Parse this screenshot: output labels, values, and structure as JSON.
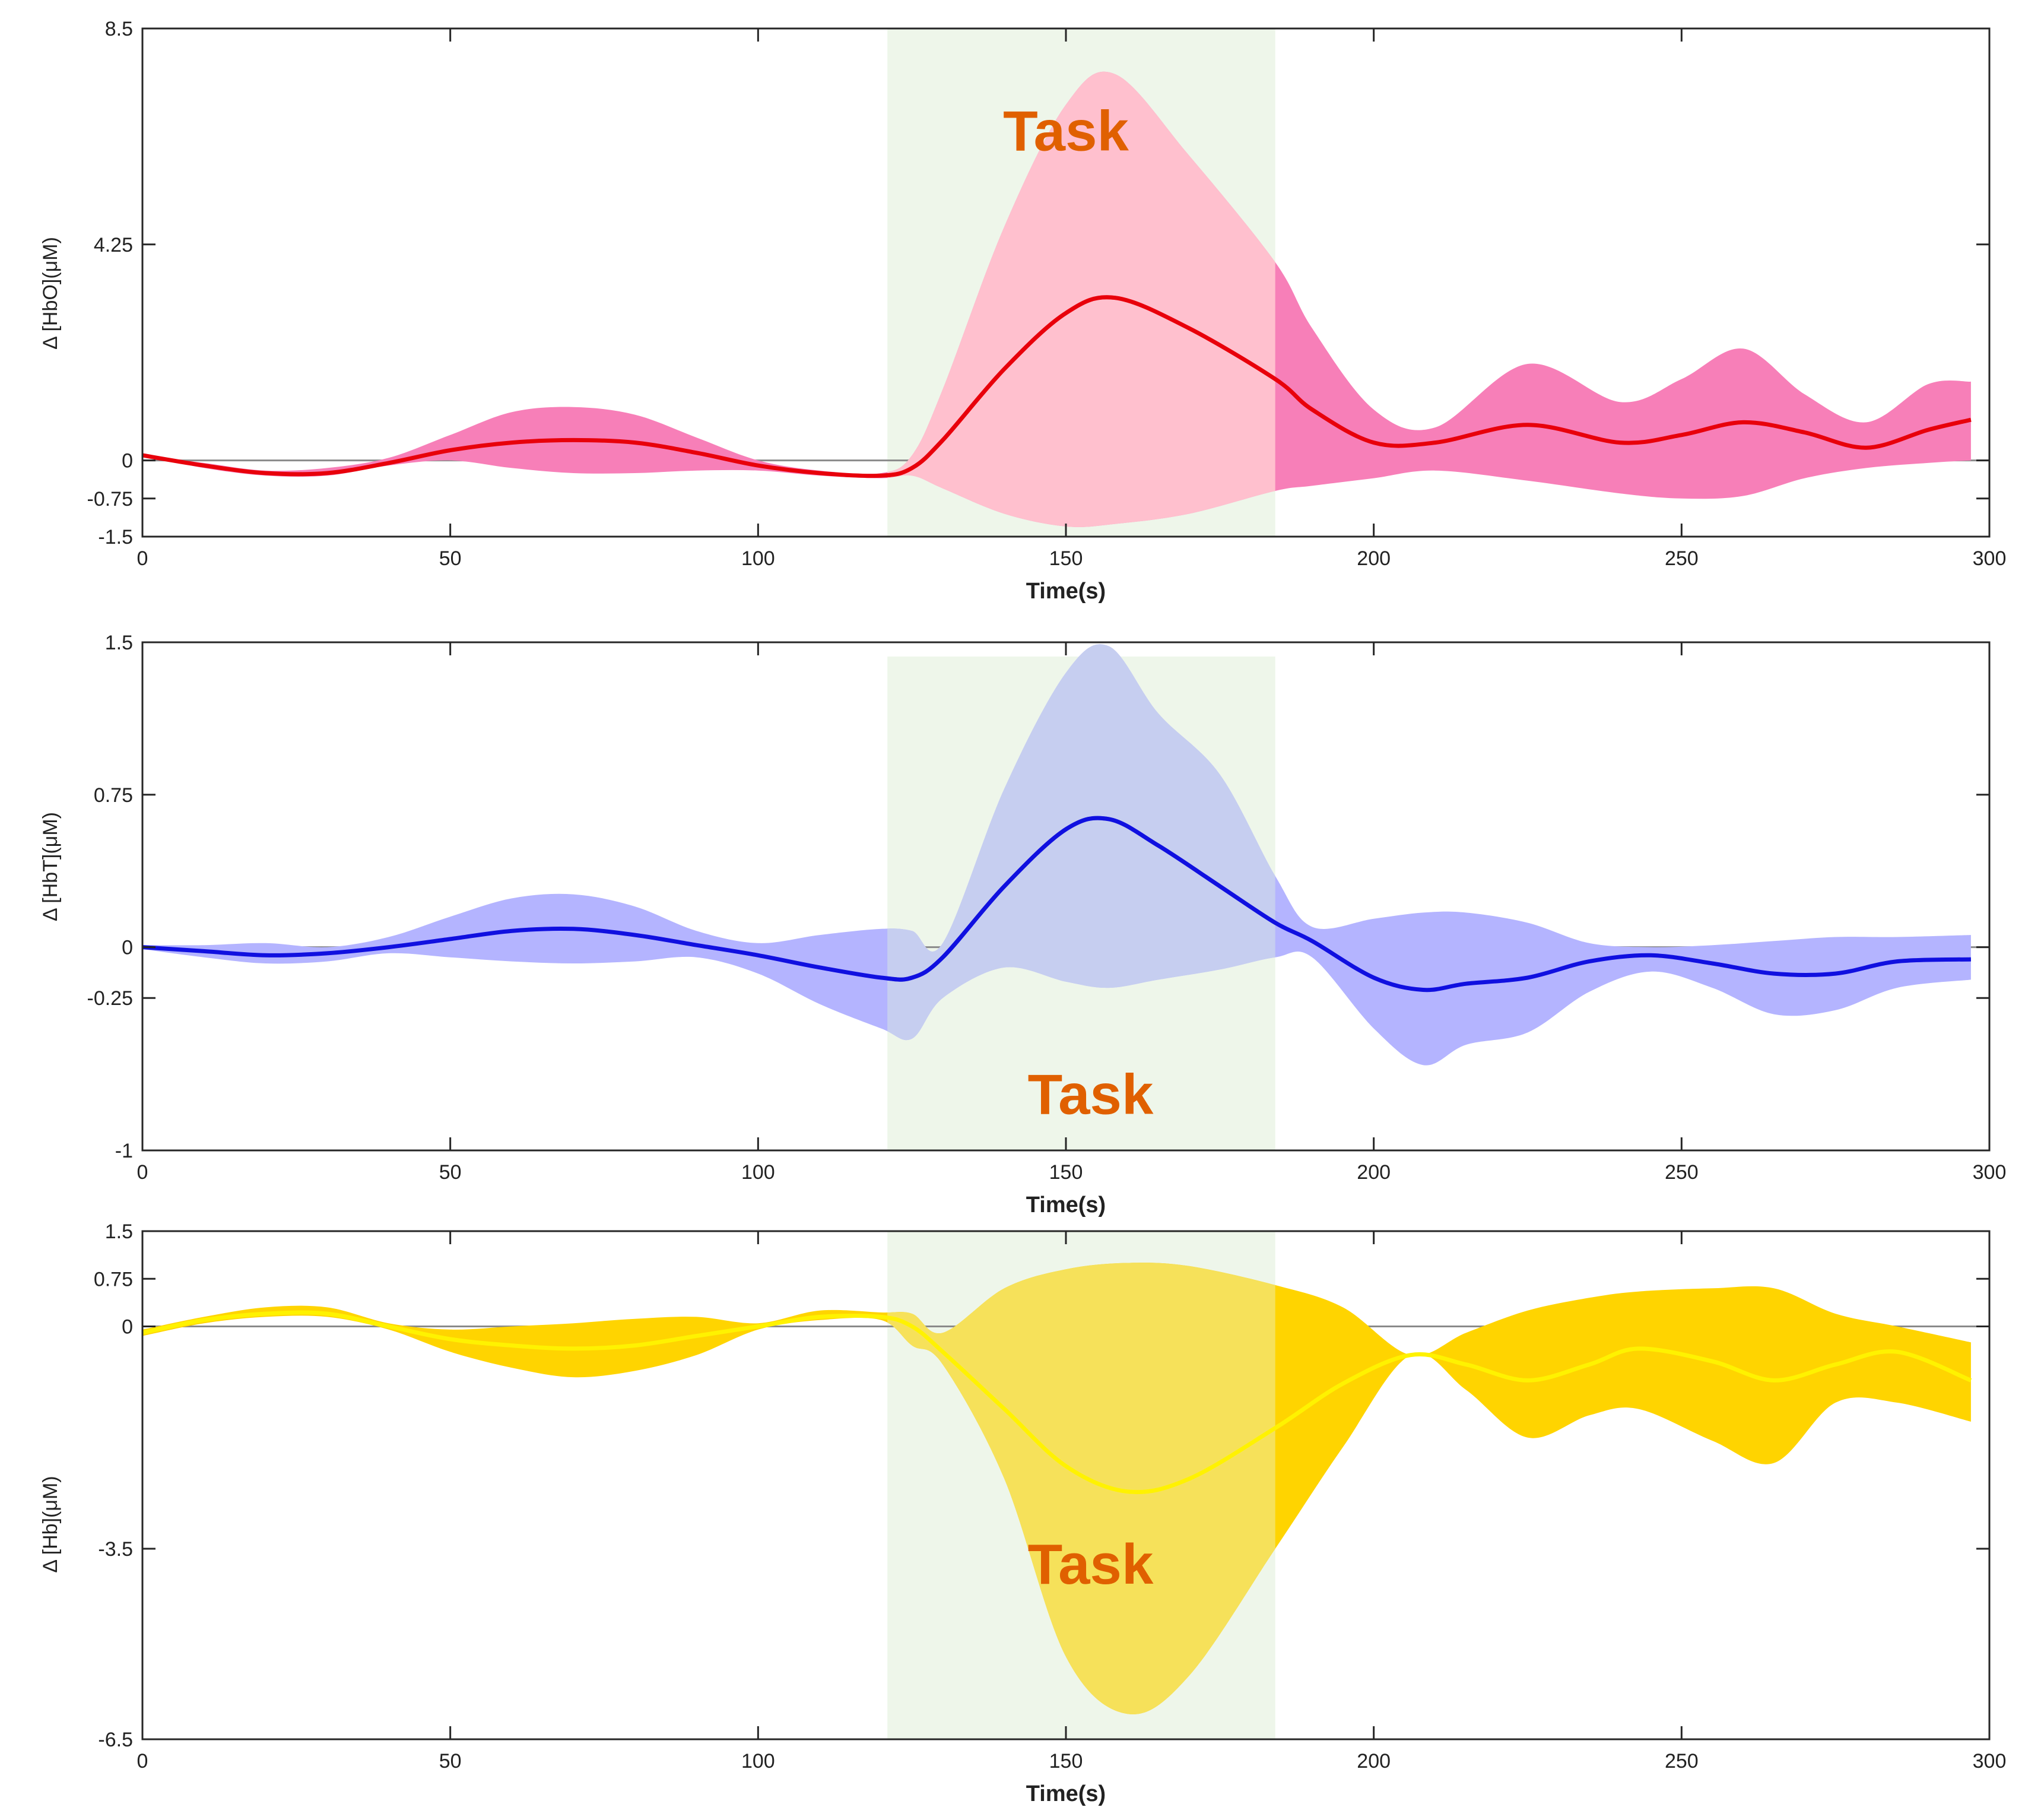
{
  "chart_data": [
    {
      "type": "area",
      "panel": "hbo",
      "ylabel": "Δ [HbO](μM)",
      "xlabel": "Time(s)",
      "xlim": [
        0,
        300
      ],
      "ylim": [
        -1.5,
        8.5
      ],
      "xticks": [
        0,
        50,
        100,
        150,
        200,
        250,
        300
      ],
      "yticks": [
        -1.5,
        -0.75,
        0,
        4.25,
        8.5
      ],
      "task_window": [
        121,
        184
      ],
      "annotation": {
        "text": "Task",
        "x": 150,
        "y": 6.1
      },
      "colors": {
        "band": "#f77fb8",
        "band_task": "#ffc0ce",
        "line": "#e8000b",
        "line_task": "#ff6b6b"
      },
      "x": [
        0,
        10,
        20,
        30,
        40,
        50,
        60,
        70,
        80,
        90,
        100,
        110,
        120,
        125,
        130,
        140,
        150,
        158,
        170,
        184,
        190,
        200,
        210,
        225,
        240,
        250,
        260,
        270,
        280,
        290,
        297
      ],
      "mean": [
        0.1,
        -0.1,
        -0.25,
        -0.25,
        -0.05,
        0.2,
        0.35,
        0.4,
        0.35,
        0.15,
        -0.1,
        -0.25,
        -0.3,
        -0.15,
        0.4,
        1.8,
        2.9,
        3.2,
        2.6,
        1.6,
        1.0,
        0.35,
        0.35,
        0.7,
        0.35,
        0.5,
        0.75,
        0.55,
        0.25,
        0.6,
        0.8
      ],
      "upper": [
        0.1,
        -0.05,
        -0.2,
        -0.15,
        0.05,
        0.5,
        0.95,
        1.05,
        0.9,
        0.45,
        0.0,
        -0.2,
        -0.25,
        0.1,
        1.4,
        4.6,
        7.0,
        7.6,
        6.0,
        3.9,
        2.6,
        1.0,
        0.65,
        1.9,
        1.15,
        1.6,
        2.2,
        1.3,
        0.75,
        1.5,
        1.55
      ],
      "lower": [
        0.1,
        -0.15,
        -0.3,
        -0.3,
        -0.1,
        0.0,
        -0.15,
        -0.25,
        -0.25,
        -0.2,
        -0.2,
        -0.3,
        -0.35,
        -0.3,
        -0.55,
        -1.05,
        -1.3,
        -1.25,
        -1.05,
        -0.6,
        -0.5,
        -0.35,
        -0.2,
        -0.4,
        -0.65,
        -0.75,
        -0.7,
        -0.35,
        -0.15,
        -0.05,
        0.0
      ]
    },
    {
      "type": "area",
      "panel": "hbt",
      "ylabel": "Δ [HbT](μM)",
      "xlabel": "Time(s)",
      "xlim": [
        0,
        300
      ],
      "ylim": [
        -1,
        1.5
      ],
      "xticks": [
        0,
        50,
        100,
        150,
        200,
        250,
        300
      ],
      "yticks": [
        -1,
        -0.25,
        0,
        0.75,
        1.5
      ],
      "task_window": [
        121,
        184
      ],
      "annotation": {
        "text": "Task",
        "x": 154,
        "y": -0.82
      },
      "colors": {
        "band": "#b4b4ff",
        "band_task": "#c6cef0",
        "line": "#1010e0",
        "line_task": "#5f66e0"
      },
      "x": [
        0,
        10,
        20,
        30,
        40,
        50,
        60,
        70,
        80,
        90,
        100,
        110,
        120,
        125,
        130,
        140,
        150,
        157,
        165,
        175,
        184,
        190,
        200,
        208,
        215,
        225,
        235,
        245,
        255,
        265,
        275,
        285,
        297
      ],
      "mean": [
        0.0,
        -0.02,
        -0.04,
        -0.03,
        0.0,
        0.04,
        0.08,
        0.09,
        0.06,
        0.01,
        -0.04,
        -0.1,
        -0.15,
        -0.15,
        -0.05,
        0.3,
        0.58,
        0.63,
        0.5,
        0.3,
        0.12,
        0.03,
        -0.15,
        -0.21,
        -0.18,
        -0.15,
        -0.07,
        -0.04,
        -0.08,
        -0.13,
        -0.13,
        -0.07,
        -0.06
      ],
      "upper": [
        0.01,
        0.01,
        0.02,
        0.0,
        0.05,
        0.15,
        0.24,
        0.26,
        0.2,
        0.08,
        0.02,
        0.06,
        0.09,
        0.08,
        0.02,
        0.78,
        1.35,
        1.48,
        1.15,
        0.85,
        0.35,
        0.1,
        0.14,
        0.17,
        0.17,
        0.12,
        0.02,
        0.0,
        0.01,
        0.03,
        0.05,
        0.05,
        0.06
      ],
      "lower": [
        -0.01,
        -0.05,
        -0.08,
        -0.07,
        -0.03,
        -0.05,
        -0.07,
        -0.08,
        -0.07,
        -0.05,
        -0.13,
        -0.28,
        -0.4,
        -0.45,
        -0.25,
        -0.1,
        -0.17,
        -0.2,
        -0.16,
        -0.11,
        -0.05,
        -0.05,
        -0.4,
        -0.58,
        -0.48,
        -0.42,
        -0.22,
        -0.12,
        -0.2,
        -0.33,
        -0.31,
        -0.2,
        -0.16
      ]
    },
    {
      "type": "area",
      "panel": "hb",
      "ylabel": "Δ [Hb](μM)",
      "xlabel": "Time(s)",
      "xlim": [
        0,
        300
      ],
      "ylim": [
        -6.5,
        1.5
      ],
      "xticks": [
        0,
        50,
        100,
        150,
        200,
        250,
        300
      ],
      "yticks": [
        -6.5,
        -3.5,
        0,
        0.75,
        1.5
      ],
      "task_window": [
        121,
        184
      ],
      "annotation": {
        "text": "Task",
        "x": 154,
        "y": -4.05
      },
      "colors": {
        "band": "#ffd400",
        "band_task": "#f6e15a",
        "line": "#fff200",
        "line_task": "#f6f070"
      },
      "x": [
        0,
        10,
        20,
        30,
        40,
        50,
        60,
        70,
        80,
        90,
        100,
        110,
        120,
        125,
        130,
        140,
        150,
        160,
        170,
        184,
        195,
        206,
        215,
        225,
        235,
        243,
        255,
        265,
        275,
        285,
        297
      ],
      "mean": [
        -0.1,
        0.1,
        0.2,
        0.2,
        0.0,
        -0.2,
        -0.3,
        -0.35,
        -0.3,
        -0.15,
        0.0,
        0.15,
        0.15,
        0.0,
        -0.4,
        -1.3,
        -2.2,
        -2.6,
        -2.4,
        -1.6,
        -0.9,
        -0.45,
        -0.6,
        -0.85,
        -0.6,
        -0.35,
        -0.55,
        -0.85,
        -0.6,
        -0.4,
        -0.85
      ],
      "upper": [
        -0.05,
        0.15,
        0.3,
        0.3,
        0.05,
        -0.05,
        0.0,
        0.05,
        0.12,
        0.15,
        0.05,
        0.25,
        0.22,
        0.2,
        -0.1,
        0.6,
        0.9,
        1.0,
        0.95,
        0.65,
        0.3,
        -0.45,
        -0.1,
        0.25,
        0.45,
        0.55,
        0.6,
        0.6,
        0.2,
        0.0,
        -0.25
      ],
      "lower": [
        -0.15,
        0.05,
        0.15,
        0.15,
        -0.05,
        -0.4,
        -0.65,
        -0.8,
        -0.7,
        -0.45,
        -0.05,
        0.1,
        0.1,
        -0.3,
        -0.6,
        -2.4,
        -5.2,
        -6.1,
        -5.5,
        -3.5,
        -1.9,
        -0.45,
        -1.0,
        -1.75,
        -1.4,
        -1.3,
        -1.8,
        -2.15,
        -1.2,
        -1.2,
        -1.5
      ]
    }
  ]
}
